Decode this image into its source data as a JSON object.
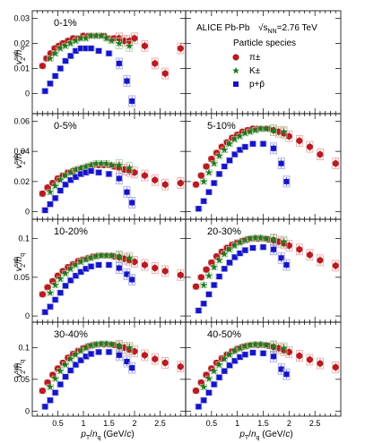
{
  "figure": {
    "experiment": "ALICE Pb-Pb",
    "energy_prefix": "√s",
    "energy_sub": "NN",
    "energy_suffix": "=2.76 TeV",
    "legend_title": "Particle species",
    "xlabel": "p_T/n_q (GeV/c)",
    "ylabel": "v2sub/nq"
  },
  "species": [
    {
      "name": "π±",
      "marker": "circle",
      "color": "#c0181e",
      "sys_color": "#f0a0a0"
    },
    {
      "name": "K±",
      "marker": "star",
      "color": "#1e7a1e",
      "sys_color": "#a0d0a0"
    },
    {
      "name": "p+p̄",
      "marker": "square",
      "color": "#1414c8",
      "sys_color": "#a0a0e8"
    }
  ],
  "chart_data": [
    {
      "type": "scatter",
      "label": "0-1%",
      "xlim": [
        0,
        3.0
      ],
      "ylim": [
        -0.008,
        0.033
      ],
      "yticks": [
        0,
        0.01,
        0.02,
        0.03
      ],
      "ytick_labels": [
        "0",
        "0.01",
        "0.02",
        "0.03"
      ],
      "xticks": [
        0.5,
        1,
        1.5,
        2,
        2.5
      ],
      "xtick_labels": [],
      "series": [
        {
          "name": "π±",
          "x": [
            0.2,
            0.28,
            0.36,
            0.44,
            0.52,
            0.6,
            0.7,
            0.8,
            0.9,
            1.0,
            1.1,
            1.2,
            1.3,
            1.4,
            1.5,
            1.6,
            1.7,
            1.8,
            1.9,
            2.0,
            2.2,
            2.4,
            2.6,
            2.9
          ],
          "y": [
            0.011,
            0.014,
            0.016,
            0.018,
            0.019,
            0.02,
            0.021,
            0.022,
            0.022,
            0.023,
            0.023,
            0.023,
            0.023,
            0.023,
            0.022,
            0.022,
            0.022,
            0.021,
            0.021,
            0.022,
            0.019,
            0.012,
            0.008,
            0.018
          ]
        },
        {
          "name": "K±",
          "x": [
            0.35,
            0.45,
            0.55,
            0.65,
            0.75,
            0.85,
            0.95,
            1.05,
            1.15,
            1.25,
            1.35,
            1.45,
            1.55,
            1.7,
            1.9
          ],
          "y": [
            0.014,
            0.016,
            0.018,
            0.019,
            0.02,
            0.021,
            0.022,
            0.022,
            0.023,
            0.023,
            0.023,
            0.022,
            0.021,
            0.02,
            0.019
          ]
        },
        {
          "name": "p+p̄",
          "x": [
            0.25,
            0.35,
            0.45,
            0.55,
            0.65,
            0.75,
            0.85,
            0.95,
            1.05,
            1.15,
            1.3,
            1.5,
            1.7,
            1.85,
            1.95
          ],
          "y": [
            0.001,
            0.004,
            0.007,
            0.01,
            0.013,
            0.015,
            0.017,
            0.018,
            0.018,
            0.018,
            0.017,
            0.016,
            0.012,
            0.005,
            -0.003
          ]
        }
      ]
    },
    {
      "type": "legend-panel",
      "label": "",
      "xlim": [
        0,
        3.0
      ],
      "ylim": [
        -0.008,
        0.033
      ],
      "yticks": [
        0,
        0.01,
        0.02,
        0.03
      ],
      "ytick_labels": [],
      "xticks": [
        0.5,
        1,
        1.5,
        2,
        2.5
      ],
      "xtick_labels": [],
      "series": []
    },
    {
      "type": "scatter",
      "label": "0-5%",
      "xlim": [
        0,
        3.0
      ],
      "ylim": [
        -0.005,
        0.065
      ],
      "yticks": [
        0,
        0.02,
        0.04,
        0.06
      ],
      "ytick_labels": [
        "0",
        "0.02",
        "0.04",
        "0.06"
      ],
      "xticks": [
        0.5,
        1,
        1.5,
        2,
        2.5
      ],
      "xtick_labels": [],
      "series": [
        {
          "name": "π±",
          "x": [
            0.2,
            0.3,
            0.4,
            0.5,
            0.6,
            0.7,
            0.8,
            0.9,
            1.0,
            1.1,
            1.2,
            1.3,
            1.4,
            1.5,
            1.6,
            1.7,
            1.8,
            1.9,
            2.0,
            2.2,
            2.4,
            2.6,
            2.9
          ],
          "y": [
            0.012,
            0.016,
            0.019,
            0.022,
            0.024,
            0.026,
            0.027,
            0.028,
            0.029,
            0.03,
            0.031,
            0.031,
            0.031,
            0.031,
            0.03,
            0.029,
            0.028,
            0.027,
            0.026,
            0.024,
            0.021,
            0.018,
            0.019
          ]
        },
        {
          "name": "K±",
          "x": [
            0.35,
            0.45,
            0.55,
            0.65,
            0.75,
            0.85,
            0.95,
            1.05,
            1.15,
            1.25,
            1.35,
            1.45,
            1.55,
            1.7,
            1.9
          ],
          "y": [
            0.013,
            0.017,
            0.021,
            0.024,
            0.026,
            0.028,
            0.029,
            0.03,
            0.031,
            0.032,
            0.032,
            0.032,
            0.031,
            0.031,
            0.029
          ]
        },
        {
          "name": "p+p̄",
          "x": [
            0.25,
            0.35,
            0.45,
            0.55,
            0.65,
            0.75,
            0.85,
            0.95,
            1.05,
            1.15,
            1.3,
            1.5,
            1.7,
            1.85,
            1.95
          ],
          "y": [
            0.001,
            0.005,
            0.009,
            0.014,
            0.018,
            0.021,
            0.023,
            0.025,
            0.026,
            0.027,
            0.026,
            0.025,
            0.022,
            0.013,
            0.006
          ]
        }
      ]
    },
    {
      "type": "scatter",
      "label": "5-10%",
      "xlim": [
        0,
        3.0
      ],
      "ylim": [
        -0.005,
        0.065
      ],
      "yticks": [
        0,
        0.02,
        0.04,
        0.06
      ],
      "ytick_labels": [],
      "xticks": [
        0.5,
        1,
        1.5,
        2,
        2.5
      ],
      "xtick_labels": [],
      "series": [
        {
          "name": "π±",
          "x": [
            0.2,
            0.3,
            0.4,
            0.5,
            0.6,
            0.7,
            0.8,
            0.9,
            1.0,
            1.1,
            1.2,
            1.3,
            1.4,
            1.5,
            1.6,
            1.7,
            1.8,
            1.9,
            2.0,
            2.2,
            2.4,
            2.6,
            2.9
          ],
          "y": [
            0.018,
            0.024,
            0.03,
            0.035,
            0.039,
            0.043,
            0.046,
            0.049,
            0.051,
            0.053,
            0.054,
            0.055,
            0.055,
            0.055,
            0.055,
            0.054,
            0.053,
            0.052,
            0.05,
            0.047,
            0.043,
            0.038,
            0.032
          ]
        },
        {
          "name": "K±",
          "x": [
            0.35,
            0.45,
            0.55,
            0.65,
            0.75,
            0.85,
            0.95,
            1.05,
            1.15,
            1.25,
            1.35,
            1.45,
            1.55,
            1.7,
            1.9
          ],
          "y": [
            0.02,
            0.026,
            0.032,
            0.037,
            0.041,
            0.045,
            0.048,
            0.05,
            0.052,
            0.053,
            0.054,
            0.055,
            0.055,
            0.054,
            0.053
          ]
        },
        {
          "name": "p+p̄",
          "x": [
            0.25,
            0.35,
            0.45,
            0.55,
            0.65,
            0.75,
            0.85,
            0.95,
            1.05,
            1.15,
            1.3,
            1.5,
            1.7,
            1.85,
            1.95
          ],
          "y": [
            0.002,
            0.007,
            0.013,
            0.019,
            0.025,
            0.03,
            0.034,
            0.038,
            0.041,
            0.043,
            0.045,
            0.045,
            0.042,
            0.032,
            0.02
          ]
        }
      ]
    },
    {
      "type": "scatter",
      "label": "10-20%",
      "xlim": [
        0,
        3.0
      ],
      "ylim": [
        -0.008,
        0.125
      ],
      "yticks": [
        0,
        0.05,
        0.1
      ],
      "ytick_labels": [
        "0",
        "0.05",
        "0.1"
      ],
      "xticks": [
        0.5,
        1,
        1.5,
        2,
        2.5
      ],
      "xtick_labels": [],
      "series": [
        {
          "name": "π±",
          "x": [
            0.2,
            0.3,
            0.4,
            0.5,
            0.6,
            0.7,
            0.8,
            0.9,
            1.0,
            1.1,
            1.2,
            1.3,
            1.4,
            1.5,
            1.6,
            1.7,
            1.8,
            1.9,
            2.0,
            2.2,
            2.4,
            2.6,
            2.9
          ],
          "y": [
            0.028,
            0.037,
            0.045,
            0.052,
            0.058,
            0.063,
            0.067,
            0.071,
            0.073,
            0.075,
            0.077,
            0.078,
            0.078,
            0.078,
            0.077,
            0.076,
            0.074,
            0.072,
            0.07,
            0.066,
            0.062,
            0.058,
            0.053
          ]
        },
        {
          "name": "K±",
          "x": [
            0.35,
            0.45,
            0.55,
            0.65,
            0.75,
            0.85,
            0.95,
            1.05,
            1.15,
            1.25,
            1.35,
            1.45,
            1.55,
            1.7,
            1.9
          ],
          "y": [
            0.03,
            0.04,
            0.048,
            0.055,
            0.061,
            0.066,
            0.07,
            0.073,
            0.075,
            0.077,
            0.078,
            0.078,
            0.078,
            0.077,
            0.075
          ]
        },
        {
          "name": "p+p̄",
          "x": [
            0.25,
            0.35,
            0.45,
            0.55,
            0.65,
            0.75,
            0.85,
            0.95,
            1.05,
            1.15,
            1.3,
            1.5,
            1.7,
            1.85,
            1.95
          ],
          "y": [
            0.005,
            0.012,
            0.021,
            0.03,
            0.039,
            0.046,
            0.052,
            0.057,
            0.061,
            0.064,
            0.066,
            0.066,
            0.062,
            0.054,
            0.047
          ]
        }
      ]
    },
    {
      "type": "scatter",
      "label": "20-30%",
      "xlim": [
        0,
        3.0
      ],
      "ylim": [
        -0.008,
        0.125
      ],
      "yticks": [
        0,
        0.05,
        0.1
      ],
      "ytick_labels": [],
      "xticks": [
        0.5,
        1,
        1.5,
        2,
        2.5
      ],
      "xtick_labels": [],
      "series": [
        {
          "name": "π±",
          "x": [
            0.2,
            0.3,
            0.4,
            0.5,
            0.6,
            0.7,
            0.8,
            0.9,
            1.0,
            1.1,
            1.2,
            1.3,
            1.4,
            1.5,
            1.6,
            1.7,
            1.8,
            1.9,
            2.0,
            2.2,
            2.4,
            2.6,
            2.9
          ],
          "y": [
            0.038,
            0.05,
            0.06,
            0.069,
            0.077,
            0.083,
            0.088,
            0.092,
            0.095,
            0.097,
            0.099,
            0.1,
            0.1,
            0.1,
            0.099,
            0.098,
            0.096,
            0.094,
            0.091,
            0.086,
            0.079,
            0.072,
            0.065
          ]
        },
        {
          "name": "K±",
          "x": [
            0.35,
            0.45,
            0.55,
            0.65,
            0.75,
            0.85,
            0.95,
            1.05,
            1.15,
            1.25,
            1.35,
            1.45,
            1.55,
            1.7,
            1.9
          ],
          "y": [
            0.04,
            0.052,
            0.063,
            0.072,
            0.08,
            0.086,
            0.091,
            0.095,
            0.098,
            0.1,
            0.101,
            0.101,
            0.1,
            0.099,
            0.096
          ]
        },
        {
          "name": "p+p̄",
          "x": [
            0.25,
            0.35,
            0.45,
            0.55,
            0.65,
            0.75,
            0.85,
            0.95,
            1.05,
            1.15,
            1.3,
            1.5,
            1.7,
            1.85,
            1.95
          ],
          "y": [
            0.007,
            0.016,
            0.028,
            0.04,
            0.051,
            0.061,
            0.069,
            0.076,
            0.081,
            0.085,
            0.088,
            0.089,
            0.086,
            0.075,
            0.066
          ]
        }
      ]
    },
    {
      "type": "scatter",
      "label": "30-40%",
      "xlim": [
        0,
        3.0
      ],
      "ylim": [
        -0.008,
        0.14
      ],
      "yticks": [
        0,
        0.05,
        0.1
      ],
      "ytick_labels": [
        "0",
        "0.05",
        "0.1"
      ],
      "xticks": [
        0.5,
        1,
        1.5,
        2,
        2.5
      ],
      "xtick_labels": [
        "0.5",
        "1",
        "1.5",
        "2",
        "2.5"
      ],
      "series": [
        {
          "name": "π±",
          "x": [
            0.2,
            0.3,
            0.4,
            0.5,
            0.6,
            0.7,
            0.8,
            0.9,
            1.0,
            1.1,
            1.2,
            1.3,
            1.4,
            1.5,
            1.6,
            1.7,
            1.8,
            1.9,
            2.0,
            2.2,
            2.4,
            2.6,
            2.9
          ],
          "y": [
            0.032,
            0.045,
            0.057,
            0.067,
            0.076,
            0.084,
            0.09,
            0.095,
            0.099,
            0.102,
            0.104,
            0.105,
            0.105,
            0.105,
            0.104,
            0.102,
            0.1,
            0.097,
            0.094,
            0.088,
            0.082,
            0.076,
            0.07
          ]
        },
        {
          "name": "K±",
          "x": [
            0.35,
            0.45,
            0.55,
            0.65,
            0.75,
            0.85,
            0.95,
            1.05,
            1.15,
            1.25,
            1.35,
            1.45,
            1.55,
            1.7,
            1.9
          ],
          "y": [
            0.038,
            0.051,
            0.063,
            0.073,
            0.082,
            0.089,
            0.095,
            0.1,
            0.103,
            0.105,
            0.106,
            0.106,
            0.105,
            0.103,
            0.1
          ]
        },
        {
          "name": "p+p̄",
          "x": [
            0.25,
            0.35,
            0.45,
            0.55,
            0.65,
            0.75,
            0.85,
            0.95,
            1.05,
            1.15,
            1.3,
            1.5,
            1.7,
            1.85,
            1.95
          ],
          "y": [
            0.007,
            0.017,
            0.029,
            0.042,
            0.054,
            0.064,
            0.073,
            0.08,
            0.086,
            0.09,
            0.093,
            0.093,
            0.088,
            0.078,
            0.068
          ]
        }
      ]
    },
    {
      "type": "scatter",
      "label": "40-50%",
      "xlim": [
        0,
        3.0
      ],
      "ylim": [
        -0.008,
        0.14
      ],
      "yticks": [
        0,
        0.05,
        0.1
      ],
      "ytick_labels": [],
      "xticks": [
        0.5,
        1,
        1.5,
        2,
        2.5
      ],
      "xtick_labels": [
        "0.5",
        "1",
        "1.5",
        "2",
        "2.5"
      ],
      "series": [
        {
          "name": "π±",
          "x": [
            0.2,
            0.3,
            0.4,
            0.5,
            0.6,
            0.7,
            0.8,
            0.9,
            1.0,
            1.1,
            1.2,
            1.3,
            1.4,
            1.5,
            1.6,
            1.7,
            1.8,
            1.9,
            2.0,
            2.2,
            2.4,
            2.6,
            2.9
          ],
          "y": [
            0.032,
            0.045,
            0.057,
            0.067,
            0.076,
            0.083,
            0.089,
            0.094,
            0.098,
            0.101,
            0.103,
            0.104,
            0.104,
            0.104,
            0.103,
            0.101,
            0.099,
            0.096,
            0.093,
            0.087,
            0.081,
            0.075,
            0.069
          ]
        },
        {
          "name": "K±",
          "x": [
            0.35,
            0.45,
            0.55,
            0.65,
            0.75,
            0.85,
            0.95,
            1.05,
            1.15,
            1.25,
            1.35,
            1.45,
            1.55,
            1.7,
            1.9
          ],
          "y": [
            0.038,
            0.051,
            0.063,
            0.073,
            0.082,
            0.089,
            0.095,
            0.099,
            0.102,
            0.104,
            0.105,
            0.105,
            0.104,
            0.102,
            0.099
          ]
        },
        {
          "name": "p+p̄",
          "x": [
            0.25,
            0.35,
            0.45,
            0.55,
            0.65,
            0.75,
            0.85,
            0.95,
            1.05,
            1.15,
            1.3,
            1.5,
            1.7,
            1.85,
            1.95
          ],
          "y": [
            0.007,
            0.017,
            0.029,
            0.042,
            0.053,
            0.063,
            0.072,
            0.079,
            0.085,
            0.089,
            0.092,
            0.091,
            0.086,
            0.066,
            0.058
          ]
        }
      ]
    }
  ]
}
